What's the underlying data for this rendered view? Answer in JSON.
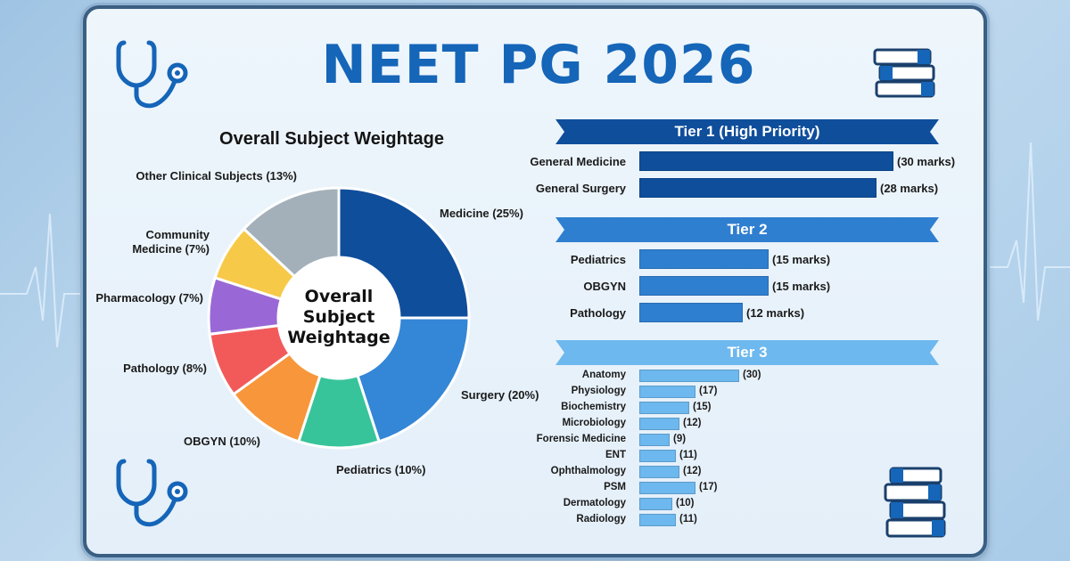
{
  "title": "NEET PG 2026",
  "colors": {
    "title": "#1565b8",
    "tier1": "#0f4e9b",
    "tier2": "#2f7fd0",
    "tier3": "#6db8ee"
  },
  "icons": [
    "stethoscope-icon",
    "books-icon"
  ],
  "chart_data": [
    {
      "type": "pie",
      "title": "Overall Subject Weightage",
      "center_label": [
        "Overall",
        "Subject",
        "Weightage"
      ],
      "slices": [
        {
          "label": "Medicine (25%)",
          "value": 25,
          "color": "#0f4e9b"
        },
        {
          "label": "Surgery (20%)",
          "value": 20,
          "color": "#3486d6"
        },
        {
          "label": "Pediatrics (10%)",
          "value": 10,
          "color": "#37c49a"
        },
        {
          "label": "OBGYN (10%)",
          "value": 10,
          "color": "#f7963a"
        },
        {
          "label": "Pathology (8%)",
          "value": 8,
          "color": "#f25a5a"
        },
        {
          "label": "Pharmacology (7%)",
          "value": 7,
          "color": "#9a68d6"
        },
        {
          "label": "Community Medicine (7%)",
          "label_lines": [
            "Community",
            "Medicine (7%)"
          ],
          "value": 7,
          "color": "#f7c948"
        },
        {
          "label": "Other Clinical Subjects (13%)",
          "value": 13,
          "color": "#a3b0ba"
        }
      ]
    },
    {
      "type": "bar",
      "tiers": [
        {
          "name": "Tier 1 (High Priority)",
          "color": "#0f4e9b",
          "max": 30,
          "rows": [
            {
              "label": "General Medicine",
              "value": 30,
              "value_text": "(30 marks)"
            },
            {
              "label": "General Surgery",
              "value": 28,
              "value_text": "(28 marks)"
            }
          ]
        },
        {
          "name": "Tier 2",
          "color": "#2f7fd0",
          "max": 15,
          "rows": [
            {
              "label": "Pediatrics",
              "value": 15,
              "value_text": "(15 marks)"
            },
            {
              "label": "OBGYN",
              "value": 15,
              "value_text": "(15 marks)"
            },
            {
              "label": "Pathology",
              "value": 12,
              "value_text": "(12 marks)"
            }
          ]
        },
        {
          "name": "Tier 3",
          "color": "#6db8ee",
          "max": 30,
          "rows": [
            {
              "label": "Anatomy",
              "value": 30,
              "value_text": "(30)"
            },
            {
              "label": "Physiology",
              "value": 17,
              "value_text": "(17)"
            },
            {
              "label": "Biochemistry",
              "value": 15,
              "value_text": "(15)"
            },
            {
              "label": "Microbiology",
              "value": 12,
              "value_text": "(12)"
            },
            {
              "label": "Forensic Medicine",
              "value": 9,
              "value_text": "(9)"
            },
            {
              "label": "ENT",
              "value": 11,
              "value_text": "(11)"
            },
            {
              "label": "Ophthalmology",
              "value": 12,
              "value_text": "(12)"
            },
            {
              "label": "PSM",
              "value": 17,
              "value_text": "(17)"
            },
            {
              "label": "Dermatology",
              "value": 10,
              "value_text": "(10)"
            },
            {
              "label": "Radiology",
              "value": 11,
              "value_text": "(11)"
            }
          ]
        }
      ]
    }
  ]
}
